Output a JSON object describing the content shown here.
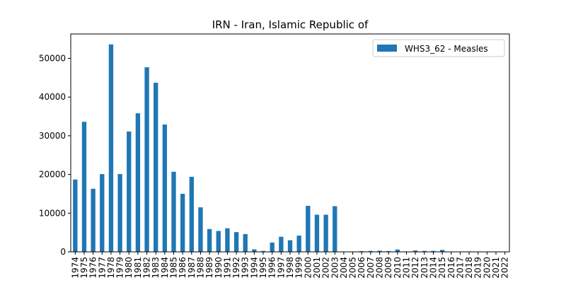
{
  "chart_data": {
    "type": "bar",
    "title": "IRN - Iran, Islamic Republic of",
    "xlabel": "",
    "ylabel": "",
    "categories": [
      "1974",
      "1975",
      "1976",
      "1977",
      "1978",
      "1979",
      "1980",
      "1981",
      "1982",
      "1983",
      "1984",
      "1985",
      "1986",
      "1987",
      "1988",
      "1989",
      "1990",
      "1991",
      "1992",
      "1993",
      "1994",
      "1995",
      "1996",
      "1997",
      "1998",
      "1999",
      "2000",
      "2001",
      "2002",
      "2003",
      "2004",
      "2005",
      "2006",
      "2007",
      "2008",
      "2009",
      "2010",
      "2011",
      "2012",
      "2013",
      "2014",
      "2015",
      "2016",
      "2017",
      "2018",
      "2019",
      "2020",
      "2021",
      "2022"
    ],
    "series": [
      {
        "name": "WHS3_62 - Measles",
        "color": "#1f77b4",
        "values": [
          18700,
          33600,
          16300,
          20100,
          53600,
          20100,
          31100,
          35800,
          47700,
          43700,
          32900,
          20700,
          15000,
          19400,
          11500,
          5900,
          5400,
          6100,
          5100,
          4600,
          650,
          250,
          2400,
          3900,
          3000,
          4200,
          11900,
          9600,
          9600,
          11800,
          50,
          30,
          200,
          250,
          300,
          200,
          600,
          100,
          350,
          250,
          250,
          500,
          30,
          10,
          100,
          50,
          30,
          20,
          80
        ]
      }
    ],
    "ylim": [
      0,
      56300
    ],
    "yticks": [
      0,
      10000,
      20000,
      30000,
      40000,
      50000
    ],
    "grid": false,
    "legend_position": "top-right"
  }
}
